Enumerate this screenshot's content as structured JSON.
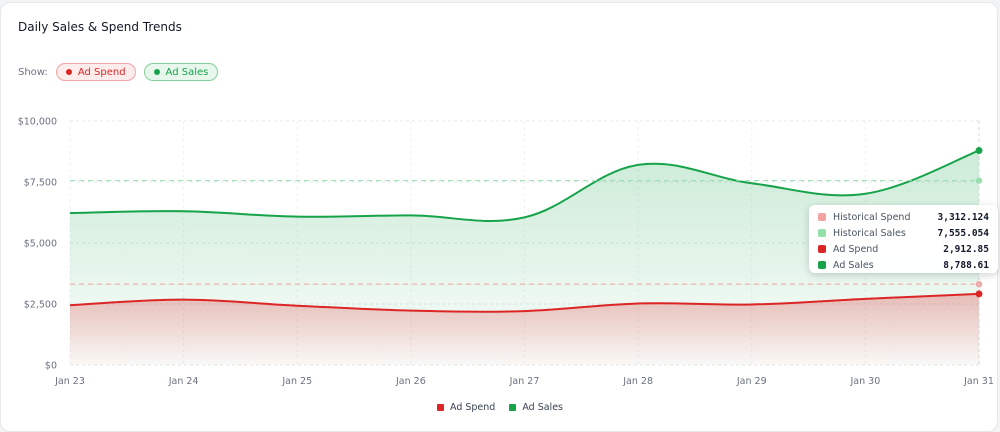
{
  "header": {
    "title": "Daily Sales & Spend Trends",
    "show_label": "Show:",
    "toggles": [
      {
        "label": "Ad Spend",
        "color": "#dc2626"
      },
      {
        "label": "Ad Sales",
        "color": "#16a34a"
      }
    ]
  },
  "chart_data": {
    "type": "area",
    "title": "Daily Sales & Spend Trends",
    "categories": [
      "Jan 23",
      "Jan 24",
      "Jan 25",
      "Jan 26",
      "Jan 27",
      "Jan 28",
      "Jan 29",
      "Jan 30",
      "Jan 31"
    ],
    "y_ticks": [
      "$0",
      "$2,500",
      "$5,000",
      "$7,500",
      "$10,000"
    ],
    "ylim": [
      0,
      10000
    ],
    "grid": true,
    "legend_position": "bottom",
    "series": [
      {
        "name": "Ad Spend",
        "color": "#dc2626",
        "values": [
          2450,
          2680,
          2430,
          2230,
          2210,
          2520,
          2480,
          2710,
          2912.85
        ]
      },
      {
        "name": "Ad Sales",
        "color": "#16a34a",
        "values": [
          6230,
          6300,
          6080,
          6130,
          6050,
          8200,
          7450,
          7020,
          8788.61
        ]
      }
    ],
    "reference_lines": [
      {
        "name": "Historical Spend",
        "value": 3312.124,
        "color": "#f4a3a3"
      },
      {
        "name": "Historical Sales",
        "value": 7555.054,
        "color": "#93e0ab"
      }
    ],
    "tooltip": {
      "category": "Jan 31",
      "rows": [
        {
          "name": "Historical Spend",
          "value": "3,312.124",
          "color": "#f4a3a3"
        },
        {
          "name": "Historical Sales",
          "value": "7,555.054",
          "color": "#93e0ab"
        },
        {
          "name": "Ad Spend",
          "value": "2,912.85",
          "color": "#dc2626"
        },
        {
          "name": "Ad Sales",
          "value": "8,788.61",
          "color": "#16a34a"
        }
      ]
    }
  },
  "legend": [
    {
      "label": "Ad Spend",
      "color": "#dc2626"
    },
    {
      "label": "Ad Sales",
      "color": "#16a34a"
    }
  ]
}
